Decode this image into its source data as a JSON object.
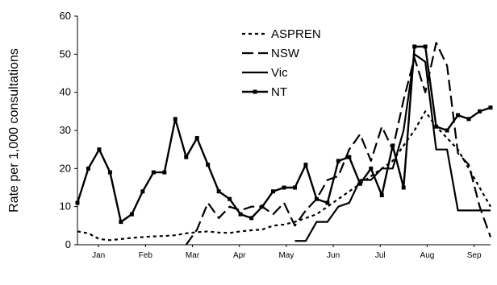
{
  "chart_data": {
    "type": "line",
    "title": "",
    "xlabel": "",
    "ylabel": "Rate per 1,000 consultations",
    "ylim": [
      0,
      60
    ],
    "yticks": [
      "0",
      "10",
      "20",
      "30",
      "40",
      "50",
      "60"
    ],
    "xlim": [
      0,
      38
    ],
    "month_labels": [
      "Jan",
      "Feb",
      "Mar",
      "Apr",
      "May",
      "Jun",
      "Jul",
      "Aug",
      "Sep"
    ],
    "legend_position": "top-center",
    "grid": false,
    "series": [
      {
        "name": "ASPREN",
        "style": "dotted",
        "x": [
          0,
          1,
          2,
          3,
          4,
          5,
          6,
          7,
          8,
          9,
          10,
          11,
          12,
          13,
          14,
          15,
          16,
          17,
          18,
          19,
          20,
          21,
          22,
          23,
          24,
          25,
          26,
          27,
          28,
          29,
          30,
          31,
          32,
          33,
          34,
          35,
          36,
          37,
          38
        ],
        "values": [
          3.5,
          3,
          1.5,
          1.2,
          1.5,
          1.8,
          2,
          2.2,
          2.3,
          2.5,
          3,
          3.3,
          3.5,
          3.2,
          3.1,
          3.5,
          3.8,
          4,
          5,
          5.3,
          6,
          7,
          8,
          10,
          12,
          14,
          16,
          18,
          20,
          22,
          26,
          30,
          35,
          31,
          28,
          25,
          20,
          15,
          10
        ]
      },
      {
        "name": "NSW",
        "style": "long-dash",
        "x": [
          10,
          11,
          12,
          13,
          14,
          15,
          16,
          17,
          18,
          19,
          20,
          21,
          22,
          23,
          24,
          25,
          26,
          27,
          28,
          29,
          30,
          31,
          32,
          33,
          34,
          35,
          36,
          37,
          38
        ],
        "values": [
          0,
          4,
          11,
          7,
          10,
          9,
          10,
          10,
          8,
          11,
          5,
          9,
          12,
          17,
          18,
          25,
          29,
          22,
          31,
          25,
          38,
          49,
          40,
          53,
          47,
          24,
          21,
          10,
          2
        ]
      },
      {
        "name": "Vic",
        "style": "solid",
        "x": [
          20,
          21,
          22,
          23,
          24,
          25,
          26,
          27,
          28,
          29,
          30,
          31,
          32,
          33,
          34,
          35,
          36,
          37,
          38
        ],
        "values": [
          1,
          1,
          6,
          6,
          10,
          11,
          17,
          17,
          20,
          20,
          30,
          50,
          48,
          25,
          25,
          9,
          9,
          9,
          9
        ]
      },
      {
        "name": "NT",
        "style": "solid-marker",
        "x": [
          0,
          1,
          2,
          3,
          4,
          5,
          6,
          7,
          8,
          9,
          10,
          11,
          12,
          13,
          14,
          15,
          16,
          17,
          18,
          19,
          20,
          21,
          22,
          23,
          24,
          25,
          26,
          27,
          28,
          29,
          30,
          31,
          32,
          33,
          34,
          35,
          36,
          37,
          38
        ],
        "values": [
          11,
          20,
          25,
          19,
          6,
          8,
          14,
          19,
          19,
          33,
          23,
          28,
          21,
          14,
          12,
          8,
          7,
          10,
          14,
          15,
          15,
          21,
          12,
          11,
          22,
          23,
          16,
          20,
          13,
          26,
          15,
          52,
          52,
          31,
          30,
          34,
          33,
          35,
          36
        ]
      }
    ]
  }
}
